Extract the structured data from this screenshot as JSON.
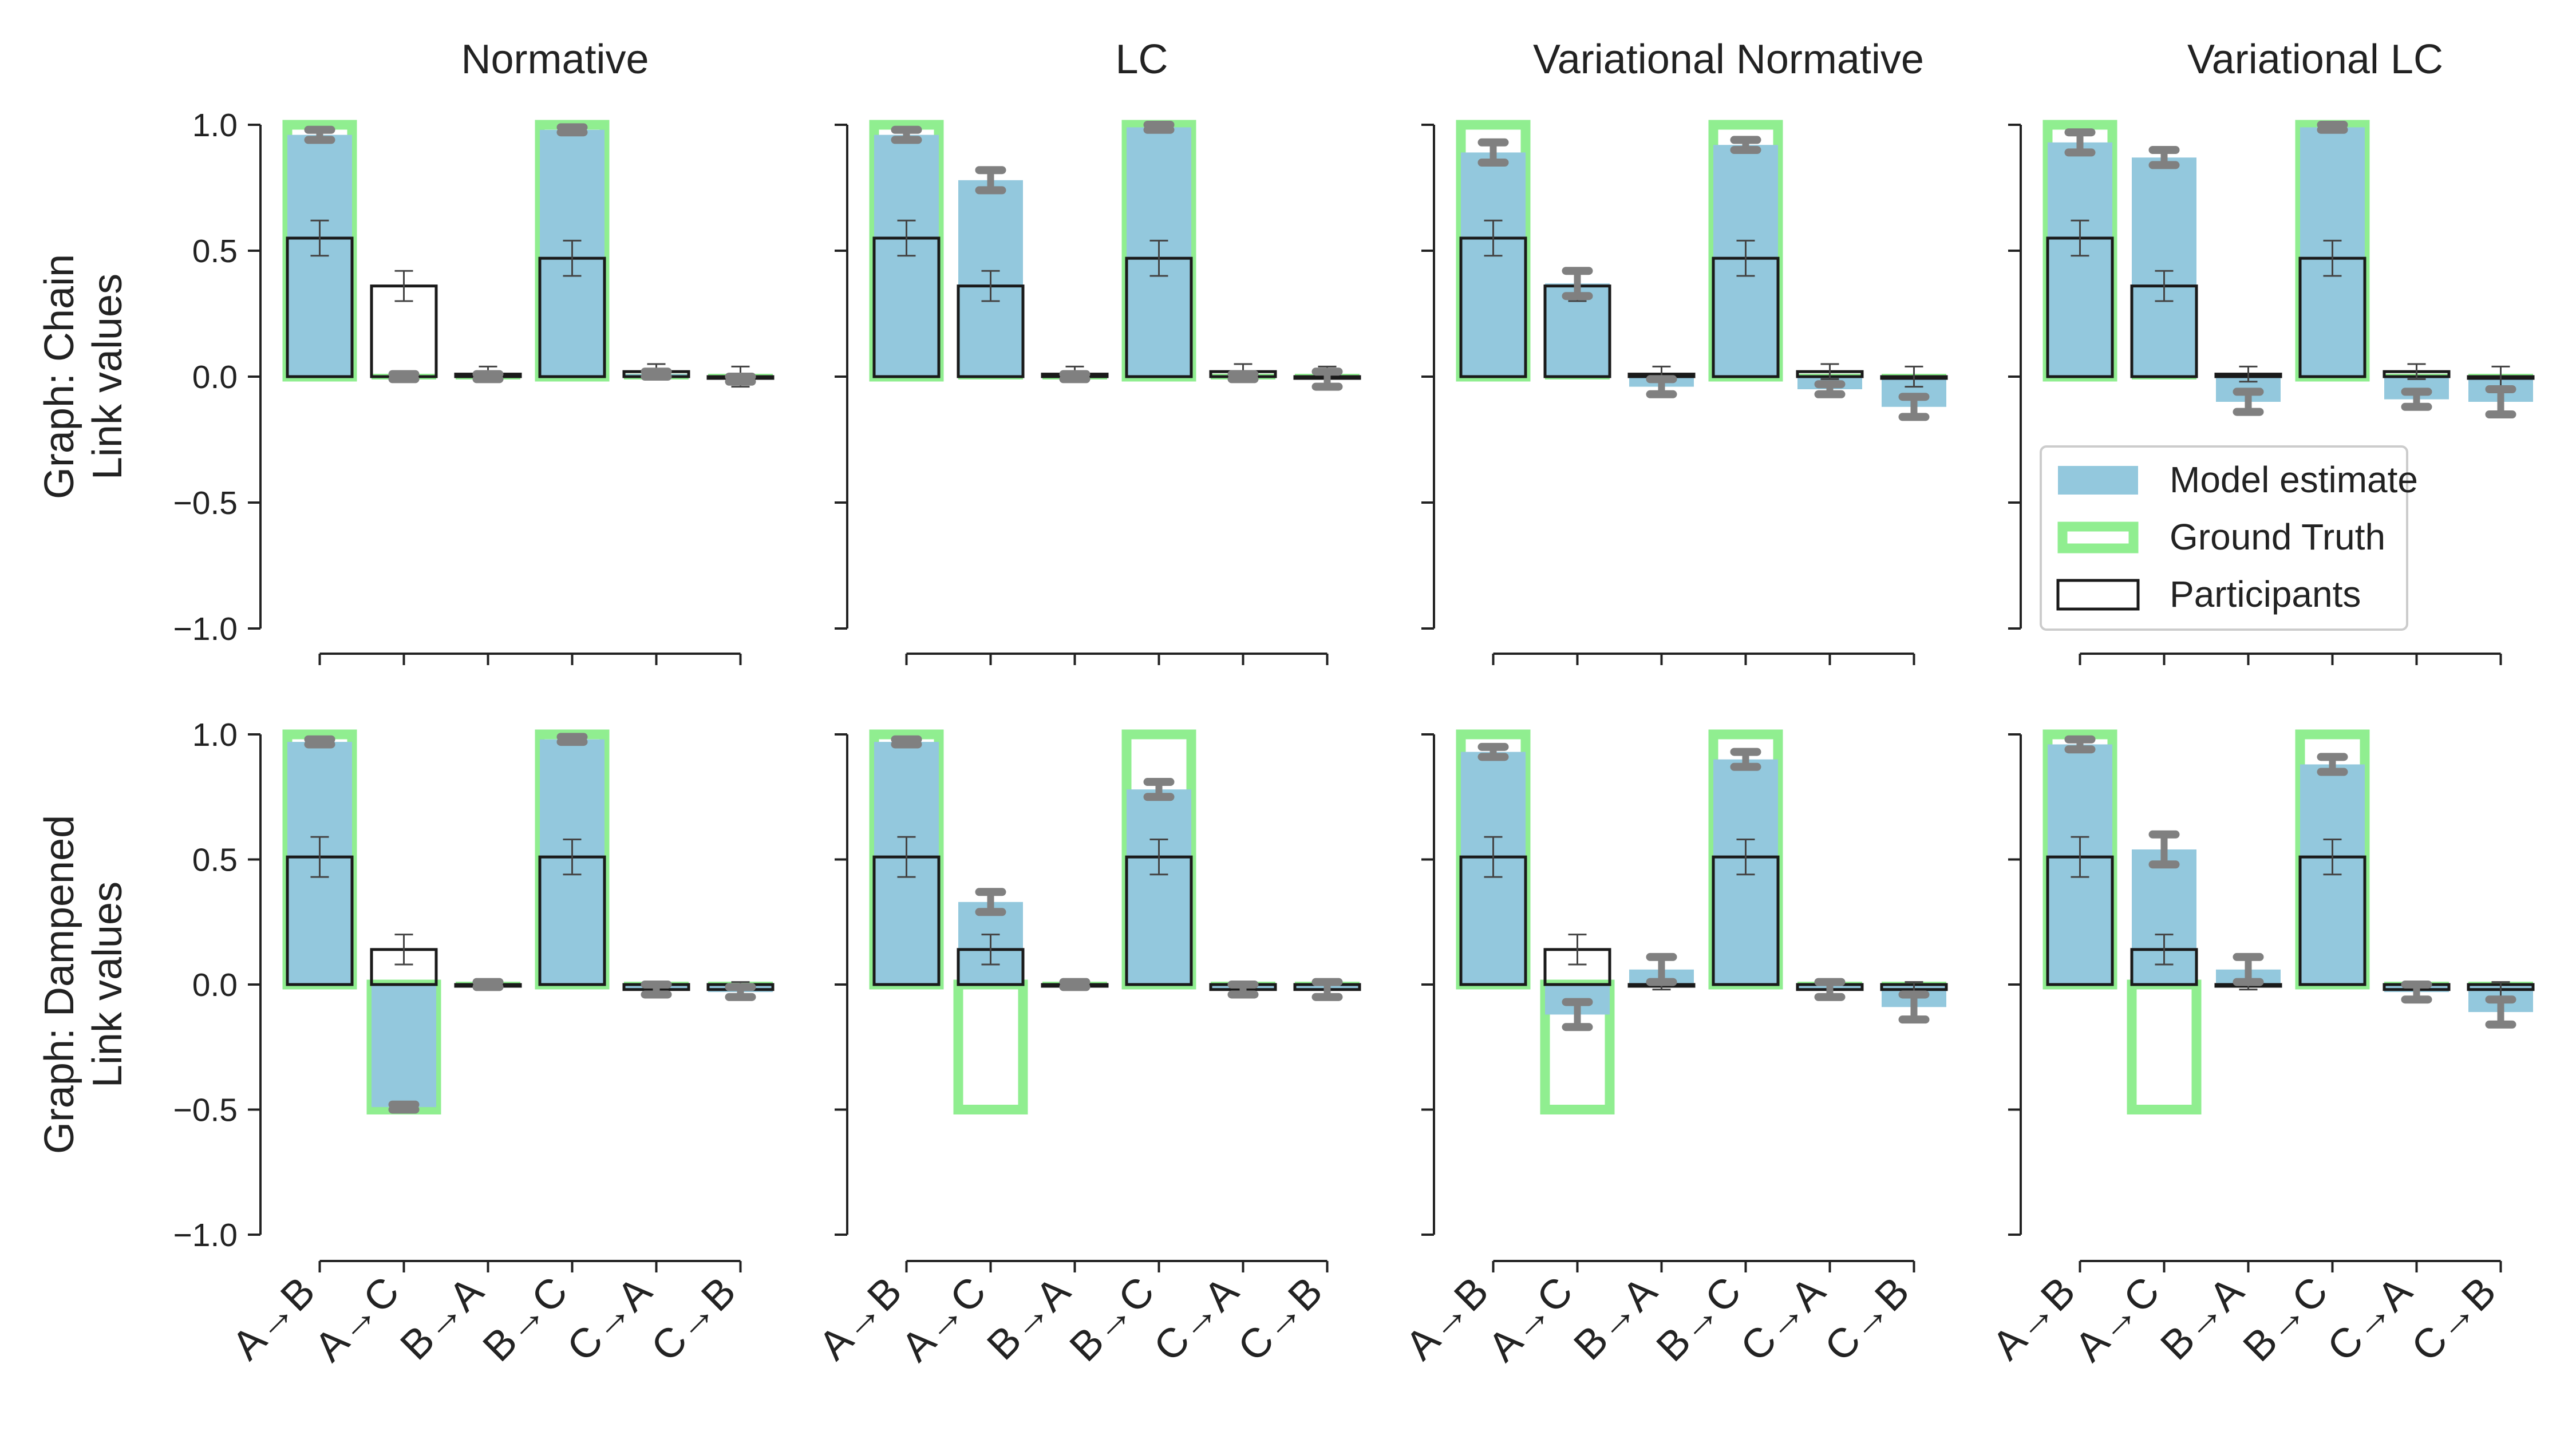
{
  "chart_data": {
    "type": "bar",
    "ylim": [
      -1.0,
      1.0
    ],
    "yticks": [
      "1.0",
      "0.5",
      "0.0",
      "−0.5",
      "−1.0"
    ],
    "categories": [
      "A→B",
      "A→C",
      "B→A",
      "B→C",
      "C→A",
      "C→B"
    ],
    "column_titles": [
      "Normative",
      "LC",
      "Variational Normative",
      "Variational LC"
    ],
    "row_labels": [
      {
        "line1": "Graph: Chain",
        "line2": "Link values"
      },
      {
        "line1": "Graph: Dampened",
        "line2": "Link values"
      }
    ],
    "legend": {
      "placement": "lower right of top-right panel",
      "entries": [
        "Model estimate",
        "Ground Truth",
        "Participants"
      ]
    },
    "colors": {
      "model": "#93c8dd",
      "ground_truth": "#90ee90",
      "participants_edge": "#1a1a1a",
      "model_error": "#808080",
      "participant_error": "#444444"
    },
    "panels": [
      {
        "row": 0,
        "col": 0,
        "title": "Normative",
        "ground_truth": [
          1,
          0,
          0,
          1,
          0,
          0
        ],
        "model": [
          0.96,
          0.0,
          0.0,
          0.98,
          0.01,
          -0.01
        ],
        "model_err": [
          0.02,
          0.01,
          0.01,
          0.01,
          0.01,
          0.01
        ],
        "participants": [
          0.55,
          0.36,
          0.01,
          0.47,
          0.02,
          0.0
        ],
        "participants_err": [
          0.07,
          0.06,
          0.03,
          0.07,
          0.03,
          0.04
        ]
      },
      {
        "row": 0,
        "col": 1,
        "title": "LC",
        "ground_truth": [
          1,
          0,
          0,
          1,
          0,
          0
        ],
        "model": [
          0.96,
          0.78,
          0.0,
          0.99,
          0.0,
          -0.01
        ],
        "model_err": [
          0.02,
          0.04,
          0.01,
          0.01,
          0.01,
          0.03
        ],
        "participants": [
          0.55,
          0.36,
          0.01,
          0.47,
          0.02,
          0.0
        ],
        "participants_err": [
          0.07,
          0.06,
          0.03,
          0.07,
          0.03,
          0.04
        ]
      },
      {
        "row": 0,
        "col": 2,
        "title": "Variational Normative",
        "ground_truth": [
          1,
          0,
          0,
          1,
          0,
          0
        ],
        "model": [
          0.89,
          0.37,
          -0.04,
          0.92,
          -0.05,
          -0.12
        ],
        "model_err": [
          0.04,
          0.05,
          0.03,
          0.02,
          0.02,
          0.04
        ],
        "participants": [
          0.55,
          0.36,
          0.01,
          0.47,
          0.02,
          0.0
        ],
        "participants_err": [
          0.07,
          0.06,
          0.03,
          0.07,
          0.03,
          0.04
        ]
      },
      {
        "row": 0,
        "col": 3,
        "title": "Variational LC",
        "ground_truth": [
          1,
          0,
          0,
          1,
          0,
          0
        ],
        "model": [
          0.93,
          0.87,
          -0.1,
          0.99,
          -0.09,
          -0.1
        ],
        "model_err": [
          0.04,
          0.03,
          0.04,
          0.01,
          0.03,
          0.05
        ],
        "participants": [
          0.55,
          0.36,
          0.01,
          0.47,
          0.02,
          0.0
        ],
        "participants_err": [
          0.07,
          0.06,
          0.03,
          0.07,
          0.03,
          0.04
        ]
      },
      {
        "row": 1,
        "col": 0,
        "title": "Normative",
        "ground_truth": [
          1,
          -0.5,
          0,
          1,
          0,
          0
        ],
        "model": [
          0.97,
          -0.49,
          0.0,
          0.98,
          -0.02,
          -0.03
        ],
        "model_err": [
          0.01,
          0.01,
          0.01,
          0.01,
          0.02,
          0.02
        ],
        "participants": [
          0.51,
          0.14,
          0.0,
          0.51,
          -0.02,
          -0.02
        ],
        "participants_err": [
          0.08,
          0.06,
          0.02,
          0.07,
          0.03,
          0.03
        ]
      },
      {
        "row": 1,
        "col": 1,
        "title": "LC",
        "ground_truth": [
          1,
          -0.5,
          0,
          1,
          0,
          0
        ],
        "model": [
          0.97,
          0.33,
          0.0,
          0.78,
          -0.02,
          -0.02
        ],
        "model_err": [
          0.01,
          0.04,
          0.01,
          0.03,
          0.02,
          0.03
        ],
        "participants": [
          0.51,
          0.14,
          0.0,
          0.51,
          -0.02,
          -0.02
        ],
        "participants_err": [
          0.08,
          0.06,
          0.02,
          0.07,
          0.03,
          0.03
        ]
      },
      {
        "row": 1,
        "col": 2,
        "title": "Variational Normative",
        "ground_truth": [
          1,
          -0.5,
          0,
          1,
          0,
          0
        ],
        "model": [
          0.93,
          -0.12,
          0.06,
          0.9,
          -0.02,
          -0.09
        ],
        "model_err": [
          0.02,
          0.05,
          0.05,
          0.03,
          0.03,
          0.05
        ],
        "participants": [
          0.51,
          0.14,
          0.0,
          0.51,
          -0.02,
          -0.02
        ],
        "participants_err": [
          0.08,
          0.06,
          0.02,
          0.07,
          0.03,
          0.03
        ]
      },
      {
        "row": 1,
        "col": 3,
        "title": "Variational LC",
        "ground_truth": [
          1,
          -0.5,
          0,
          1,
          0,
          0
        ],
        "model": [
          0.96,
          0.54,
          0.06,
          0.88,
          -0.03,
          -0.11
        ],
        "model_err": [
          0.02,
          0.06,
          0.05,
          0.03,
          0.03,
          0.05
        ],
        "participants": [
          0.51,
          0.14,
          0.0,
          0.51,
          -0.02,
          -0.02
        ],
        "participants_err": [
          0.08,
          0.06,
          0.02,
          0.07,
          0.03,
          0.03
        ]
      }
    ]
  }
}
